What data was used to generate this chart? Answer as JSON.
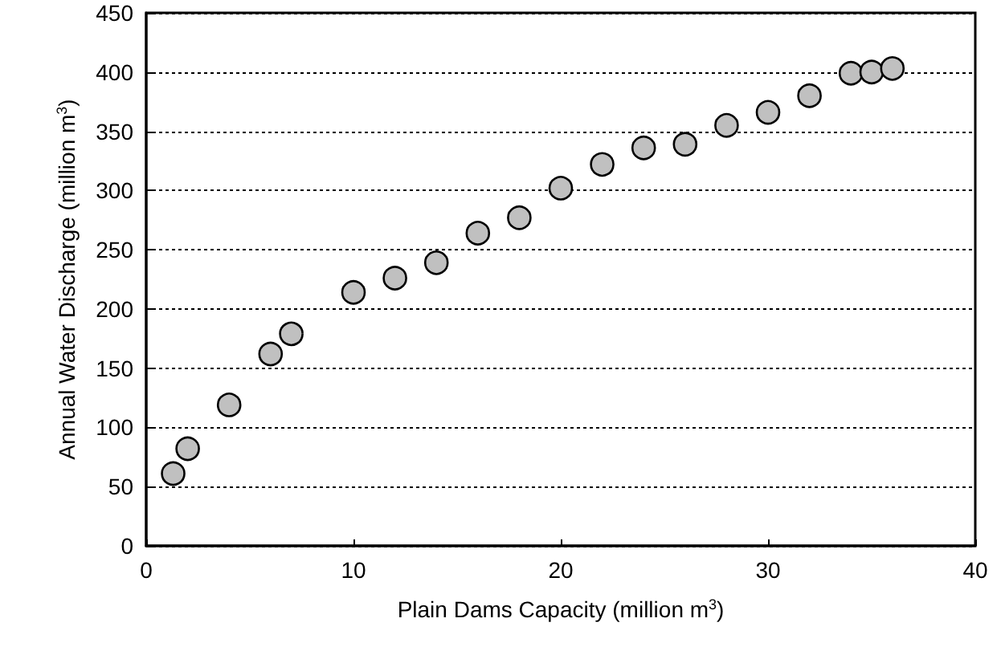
{
  "chart_data": {
    "type": "scatter",
    "xlabel": "Plain Dams Capacity (million m$^{3}$)",
    "ylabel": "Annual Water Discharge (million m$^{3}$)",
    "x": [
      1.3,
      2,
      4,
      6,
      7,
      10,
      12,
      14,
      16,
      18,
      20,
      22,
      24,
      26,
      28,
      30,
      32,
      34,
      35,
      36
    ],
    "series": [
      {
        "color": "#c0c0c0",
        "values": [
          61,
          82,
          119,
          162,
          179,
          214,
          226,
          239,
          264,
          277,
          302,
          322,
          336,
          339,
          355,
          366,
          380,
          399,
          400,
          403
        ]
      }
    ],
    "xlim": [
      0,
      40
    ],
    "xticks": [
      0,
      10,
      20,
      30,
      40
    ],
    "ylim": [
      0,
      450
    ],
    "yticks": [
      0,
      50,
      100,
      150,
      200,
      250,
      300,
      350,
      400,
      450
    ],
    "grid": "y",
    "marker": "circle"
  }
}
